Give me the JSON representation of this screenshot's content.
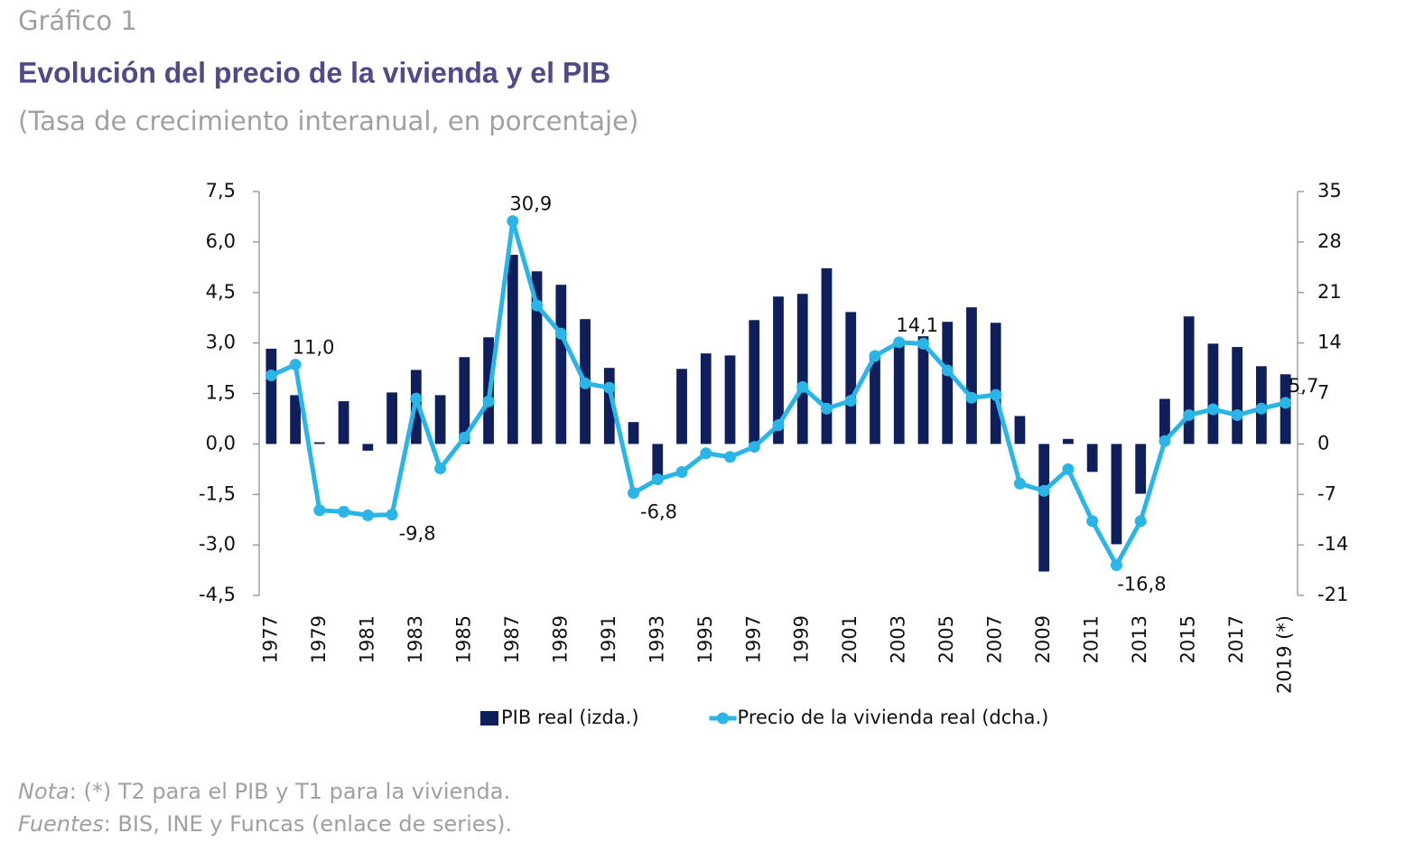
{
  "header": {
    "kicker": "Gráfico 1",
    "title": "Evolución del precio de la vivienda y el PIB",
    "subtitle": "(Tasa de crecimiento interanual, en porcentaje)"
  },
  "chart_data": {
    "type": "bar-line",
    "categories": [
      "1977",
      null,
      "1979",
      null,
      "1981",
      null,
      "1983",
      null,
      "1985",
      null,
      "1987",
      null,
      "1989",
      null,
      "1991",
      null,
      "1993",
      null,
      "1995",
      null,
      "1997",
      null,
      "1999",
      null,
      "2001",
      null,
      "2003",
      null,
      "2005",
      null,
      "2007",
      null,
      "2009",
      null,
      "2011",
      null,
      "2013",
      null,
      "2015",
      null,
      "2017",
      null,
      "2019 (*)"
    ],
    "series": [
      {
        "name": "PIB real (izda.)",
        "type": "bar",
        "color": "#0f1f5c",
        "values": [
          2.83,
          1.45,
          0.05,
          1.27,
          -0.2,
          1.53,
          2.2,
          1.45,
          2.58,
          3.17,
          5.62,
          5.13,
          4.73,
          3.71,
          2.26,
          0.65,
          -1.0,
          2.23,
          2.69,
          2.63,
          3.68,
          4.38,
          4.46,
          5.22,
          3.92,
          2.7,
          3.0,
          3.2,
          3.63,
          4.06,
          3.6,
          0.83,
          -3.79,
          0.15,
          -0.83,
          -2.98,
          -1.48,
          1.34,
          3.79,
          2.98,
          2.88,
          2.31,
          2.07
        ]
      },
      {
        "name": "Precio de la vivienda real (dcha.)",
        "type": "line",
        "axis": "y2",
        "color": "#29b5e8",
        "values": [
          9.5,
          11.0,
          -9.2,
          -9.4,
          -9.9,
          -9.8,
          6.3,
          -3.4,
          0.9,
          5.9,
          30.9,
          19.2,
          15.3,
          8.4,
          7.8,
          -6.8,
          -4.9,
          -3.9,
          -1.3,
          -1.8,
          -0.4,
          2.6,
          7.9,
          4.9,
          6.0,
          12.2,
          14.1,
          13.9,
          10.2,
          6.4,
          6.8,
          -5.5,
          -6.5,
          -3.5,
          -10.7,
          -16.8,
          -10.7,
          0.4,
          4.0,
          4.8,
          4.0,
          4.9,
          5.7
        ],
        "value_labels": [
          null,
          "11,0",
          null,
          null,
          null,
          "-9,8",
          null,
          null,
          null,
          null,
          "30,9",
          null,
          null,
          null,
          null,
          "-6,8",
          null,
          null,
          null,
          null,
          null,
          null,
          null,
          null,
          null,
          null,
          "14,1",
          null,
          null,
          null,
          null,
          null,
          null,
          null,
          null,
          "-16,8",
          null,
          null,
          null,
          null,
          null,
          null,
          "5,7"
        ]
      }
    ],
    "ylim": [
      -4.5,
      7.5
    ],
    "yticks": [
      {
        "value": -4.5,
        "label": "-4,5"
      },
      {
        "value": -3.0,
        "label": "-3,0"
      },
      {
        "value": -1.5,
        "label": "-1,5"
      },
      {
        "value": 0,
        "label": "0,0"
      },
      {
        "value": 1.5,
        "label": "1,5"
      },
      {
        "value": 3.0,
        "label": "3,0"
      },
      {
        "value": 4.5,
        "label": "4,5"
      },
      {
        "value": 6.0,
        "label": "6,0"
      },
      {
        "value": 7.5,
        "label": "7,5"
      }
    ],
    "y2lim": [
      -21,
      35
    ],
    "y2ticks": [
      -21,
      -14,
      -7,
      0,
      7,
      14,
      21,
      28,
      35
    ],
    "legend": "bottom",
    "notes": [
      {
        "label": "Nota",
        "text": ": (*) T2 para el PIB y T1 para la vivienda."
      },
      {
        "label": "Fuentes",
        "text": ": BIS, INE y Funcas (enlace de series)."
      }
    ]
  }
}
